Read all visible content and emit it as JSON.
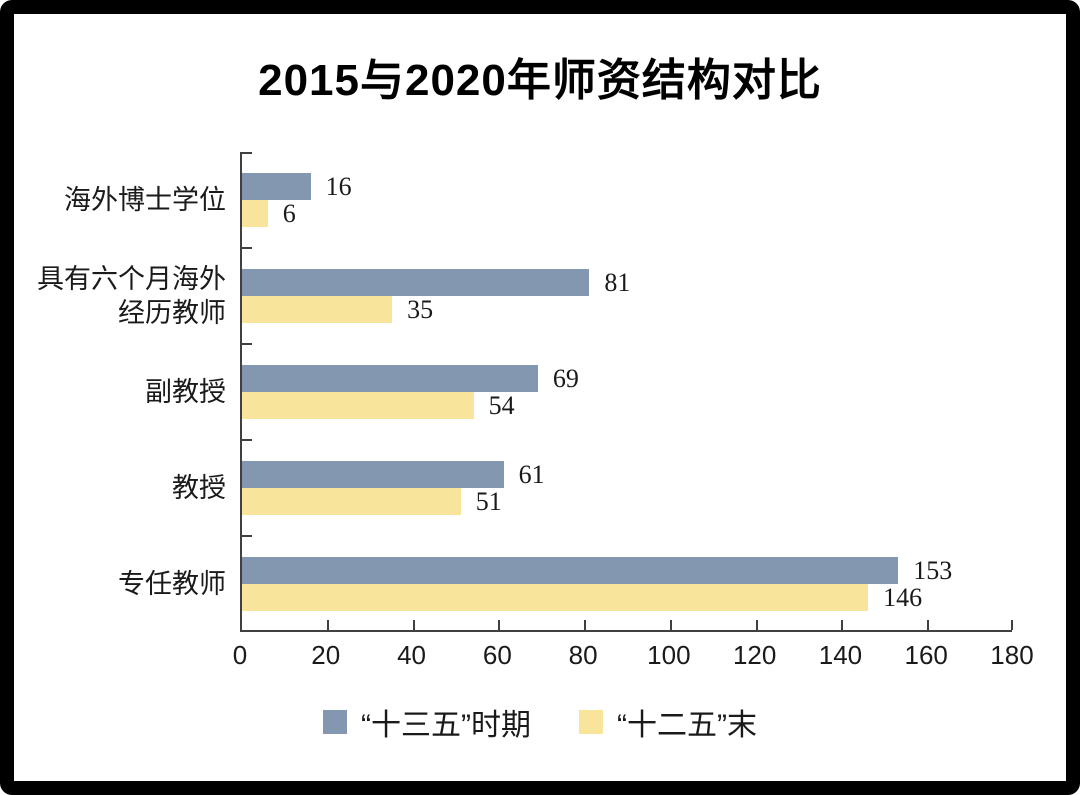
{
  "frame": {
    "background": "#ffffff",
    "border_color": "#000000"
  },
  "chart_data": {
    "type": "bar",
    "orientation": "horizontal",
    "title": "2015与2020年师资结构对比",
    "category_order": "top_to_bottom",
    "categories": [
      "海外博士学位",
      "具有六个月海外\n经历教师",
      "副教授",
      "教授",
      "专任教师"
    ],
    "series": [
      {
        "name": "“十三五”时期",
        "color": "#8497B0",
        "values": [
          16,
          81,
          69,
          61,
          153
        ]
      },
      {
        "name": "“十二五”末",
        "color": "#F9E49C",
        "values": [
          6,
          35,
          54,
          51,
          146
        ]
      }
    ],
    "xlim": [
      0,
      180
    ],
    "x_ticks": [
      0,
      20,
      40,
      60,
      80,
      100,
      120,
      140,
      160,
      180
    ],
    "grid": false,
    "data_labels": true,
    "legend_position": "bottom",
    "axis_color": "#404040",
    "label_color": "#1a1a1a"
  }
}
